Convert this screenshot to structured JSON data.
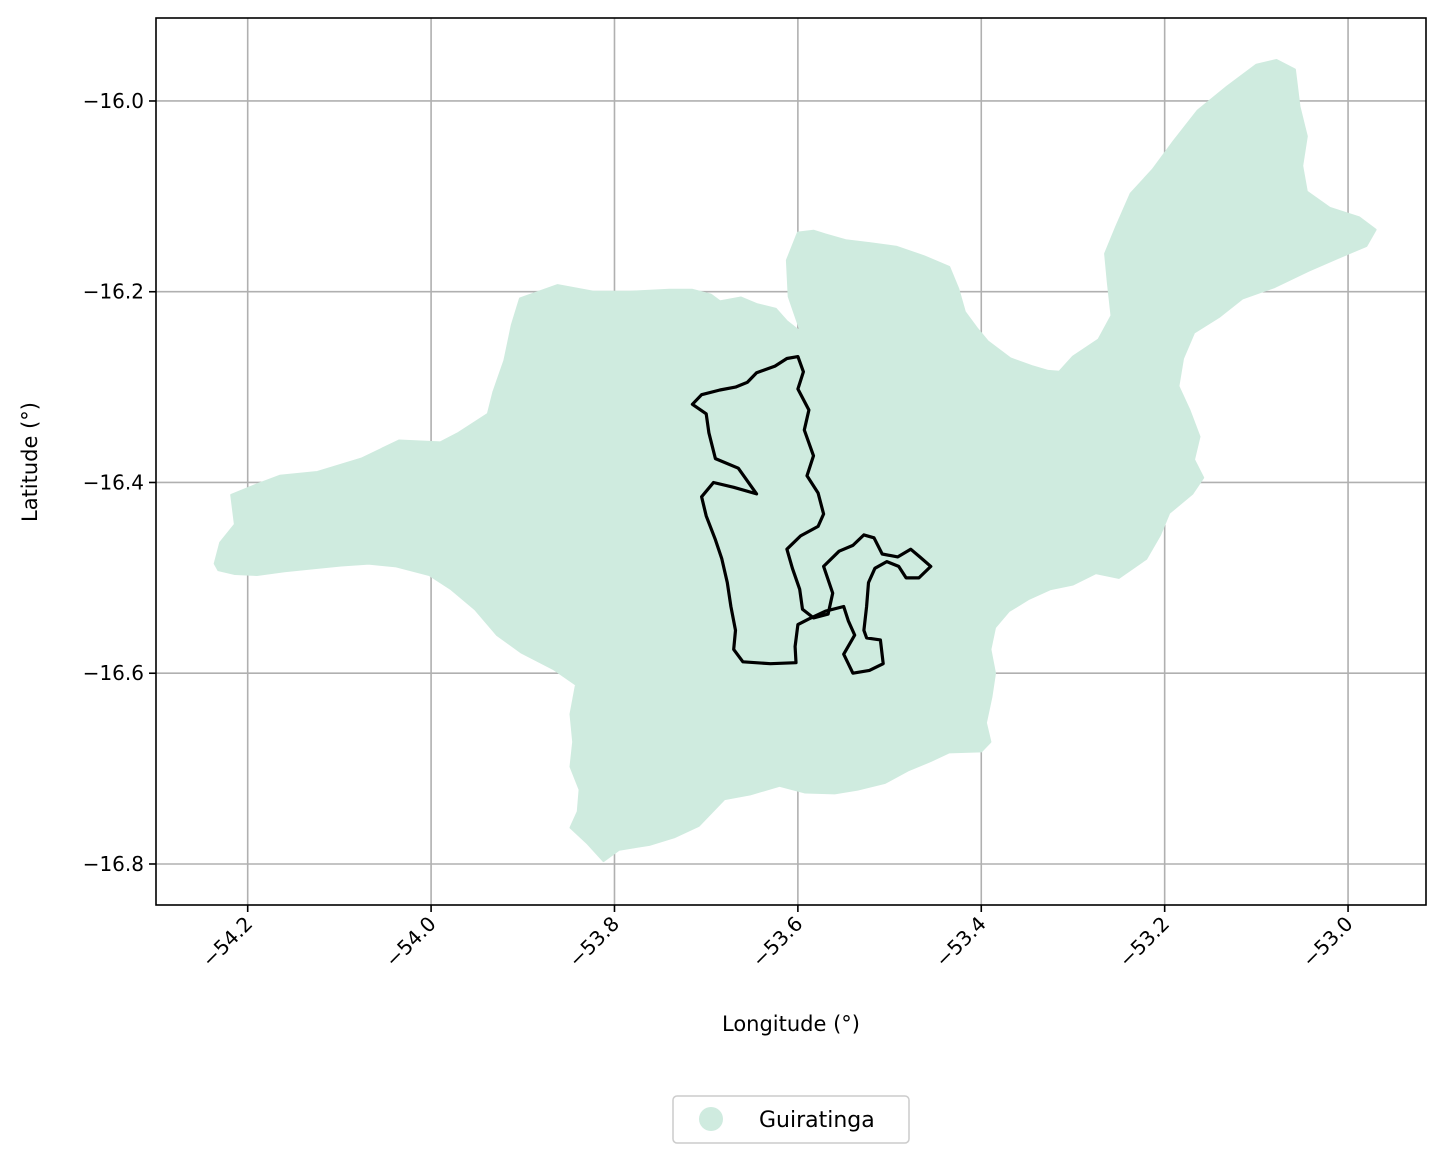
{
  "chart_data": {
    "type": "map",
    "title": "",
    "xlabel": "Longitude (°)",
    "ylabel": "Latitude (°)",
    "xlim": [
      -54.3,
      -52.915
    ],
    "ylim": [
      -16.843,
      -15.913
    ],
    "xticks": [
      -54.2,
      -54.0,
      -53.8,
      -53.6,
      -53.4,
      -53.2,
      -53.0
    ],
    "yticks": [
      -16.0,
      -16.2,
      -16.4,
      -16.6,
      -16.8
    ],
    "xtick_labels": [
      "−54.2",
      "−54.0",
      "−53.8",
      "−53.6",
      "−53.4",
      "−53.2",
      "−53.0"
    ],
    "ytick_labels": [
      "−16.0",
      "−16.2",
      "−16.4",
      "−16.6",
      "−16.8"
    ],
    "grid": true,
    "legend": {
      "placement": "bottom-center",
      "entries": [
        {
          "label": "Guiratinga",
          "color": "#cfebdf"
        }
      ]
    },
    "layers": [
      {
        "name": "Guiratinga",
        "kind": "filled-polygon",
        "color": "#cfebdf",
        "coordinates": [
          [
            -54.236,
            -16.485
          ],
          [
            -54.23,
            -16.463
          ],
          [
            -54.214,
            -16.444
          ],
          [
            -54.218,
            -16.413
          ],
          [
            -54.19,
            -16.402
          ],
          [
            -54.165,
            -16.393
          ],
          [
            -54.124,
            -16.389
          ],
          [
            -54.076,
            -16.375
          ],
          [
            -54.035,
            -16.356
          ],
          [
            -53.99,
            -16.358
          ],
          [
            -53.97,
            -16.348
          ],
          [
            -53.938,
            -16.328
          ],
          [
            -53.932,
            -16.305
          ],
          [
            -53.92,
            -16.272
          ],
          [
            -53.912,
            -16.235
          ],
          [
            -53.903,
            -16.207
          ],
          [
            -53.862,
            -16.193
          ],
          [
            -53.823,
            -16.2
          ],
          [
            -53.783,
            -16.2
          ],
          [
            -53.74,
            -16.198
          ],
          [
            -53.715,
            -16.198
          ],
          [
            -53.695,
            -16.203
          ],
          [
            -53.685,
            -16.21
          ],
          [
            -53.662,
            -16.206
          ],
          [
            -53.645,
            -16.213
          ],
          [
            -53.624,
            -16.218
          ],
          [
            -53.612,
            -16.231
          ],
          [
            -53.6,
            -16.24
          ],
          [
            -53.596,
            -16.244
          ],
          [
            -53.61,
            -16.205
          ],
          [
            -53.612,
            -16.167
          ],
          [
            -53.6,
            -16.138
          ],
          [
            -53.583,
            -16.136
          ],
          [
            -53.57,
            -16.14
          ],
          [
            -53.548,
            -16.146
          ],
          [
            -53.522,
            -16.149
          ],
          [
            -53.492,
            -16.153
          ],
          [
            -53.462,
            -16.163
          ],
          [
            -53.435,
            -16.174
          ],
          [
            -53.425,
            -16.197
          ],
          [
            -53.418,
            -16.221
          ],
          [
            -53.405,
            -16.238
          ],
          [
            -53.393,
            -16.252
          ],
          [
            -53.368,
            -16.27
          ],
          [
            -53.345,
            -16.278
          ],
          [
            -53.327,
            -16.283
          ],
          [
            -53.315,
            -16.284
          ],
          [
            -53.3,
            -16.268
          ],
          [
            -53.272,
            -16.25
          ],
          [
            -53.258,
            -16.225
          ],
          [
            -53.262,
            -16.19
          ],
          [
            -53.265,
            -16.16
          ],
          [
            -53.253,
            -16.132
          ],
          [
            -53.237,
            -16.097
          ],
          [
            -53.213,
            -16.072
          ],
          [
            -53.19,
            -16.042
          ],
          [
            -53.164,
            -16.01
          ],
          [
            -53.132,
            -15.985
          ],
          [
            -53.1,
            -15.962
          ],
          [
            -53.078,
            -15.957
          ],
          [
            -53.058,
            -15.967
          ],
          [
            -53.053,
            -16.006
          ],
          [
            -53.045,
            -16.037
          ],
          [
            -53.05,
            -16.068
          ],
          [
            -53.045,
            -16.095
          ],
          [
            -53.02,
            -16.112
          ],
          [
            -52.988,
            -16.122
          ],
          [
            -52.97,
            -16.135
          ],
          [
            -52.98,
            -16.152
          ],
          [
            -53.012,
            -16.165
          ],
          [
            -53.043,
            -16.178
          ],
          [
            -53.08,
            -16.195
          ],
          [
            -53.115,
            -16.207
          ],
          [
            -53.14,
            -16.226
          ],
          [
            -53.168,
            -16.243
          ],
          [
            -53.18,
            -16.27
          ],
          [
            -53.185,
            -16.299
          ],
          [
            -53.173,
            -16.324
          ],
          [
            -53.162,
            -16.352
          ],
          [
            -53.168,
            -16.376
          ],
          [
            -53.158,
            -16.395
          ],
          [
            -53.17,
            -16.412
          ],
          [
            -53.195,
            -16.432
          ],
          [
            -53.205,
            -16.455
          ],
          [
            -53.22,
            -16.48
          ],
          [
            -53.25,
            -16.5
          ],
          [
            -53.275,
            -16.495
          ],
          [
            -53.3,
            -16.507
          ],
          [
            -53.325,
            -16.512
          ],
          [
            -53.348,
            -16.522
          ],
          [
            -53.37,
            -16.535
          ],
          [
            -53.385,
            -16.552
          ],
          [
            -53.39,
            -16.575
          ],
          [
            -53.385,
            -16.6
          ],
          [
            -53.389,
            -16.625
          ],
          [
            -53.395,
            -16.652
          ],
          [
            -53.39,
            -16.672
          ],
          [
            -53.4,
            -16.682
          ],
          [
            -53.435,
            -16.683
          ],
          [
            -53.455,
            -16.692
          ],
          [
            -53.48,
            -16.702
          ],
          [
            -53.505,
            -16.715
          ],
          [
            -53.535,
            -16.722
          ],
          [
            -53.56,
            -16.726
          ],
          [
            -53.592,
            -16.725
          ],
          [
            -53.62,
            -16.718
          ],
          [
            -53.652,
            -16.727
          ],
          [
            -53.68,
            -16.732
          ],
          [
            -53.708,
            -16.76
          ],
          [
            -53.735,
            -16.772
          ],
          [
            -53.762,
            -16.78
          ],
          [
            -53.795,
            -16.785
          ],
          [
            -53.812,
            -16.797
          ],
          [
            -53.83,
            -16.778
          ],
          [
            -53.848,
            -16.762
          ],
          [
            -53.84,
            -16.745
          ],
          [
            -53.838,
            -16.722
          ],
          [
            -53.848,
            -16.698
          ],
          [
            -53.845,
            -16.672
          ],
          [
            -53.848,
            -16.643
          ],
          [
            -53.842,
            -16.612
          ],
          [
            -53.866,
            -16.596
          ],
          [
            -53.902,
            -16.578
          ],
          [
            -53.928,
            -16.56
          ],
          [
            -53.952,
            -16.533
          ],
          [
            -53.978,
            -16.512
          ],
          [
            -54.002,
            -16.497
          ],
          [
            -54.038,
            -16.488
          ],
          [
            -54.068,
            -16.485
          ],
          [
            -54.098,
            -16.487
          ],
          [
            -54.128,
            -16.49
          ],
          [
            -54.16,
            -16.493
          ],
          [
            -54.19,
            -16.497
          ],
          [
            -54.214,
            -16.496
          ],
          [
            -54.232,
            -16.492
          ]
        ]
      },
      {
        "name": "",
        "kind": "outline",
        "color": "#000000",
        "coordinates": [
          [
            -53.6,
            -16.268
          ],
          [
            -53.594,
            -16.284
          ],
          [
            -53.6,
            -16.302
          ],
          [
            -53.588,
            -16.324
          ],
          [
            -53.593,
            -16.345
          ],
          [
            -53.583,
            -16.372
          ],
          [
            -53.59,
            -16.393
          ],
          [
            -53.578,
            -16.411
          ],
          [
            -53.572,
            -16.433
          ],
          [
            -53.578,
            -16.446
          ],
          [
            -53.597,
            -16.456
          ],
          [
            -53.612,
            -16.47
          ],
          [
            -53.606,
            -16.49
          ],
          [
            -53.598,
            -16.512
          ],
          [
            -53.595,
            -16.533
          ],
          [
            -53.583,
            -16.542
          ],
          [
            -53.567,
            -16.538
          ],
          [
            -53.562,
            -16.516
          ],
          [
            -53.572,
            -16.488
          ],
          [
            -53.555,
            -16.472
          ],
          [
            -53.54,
            -16.466
          ],
          [
            -53.528,
            -16.455
          ],
          [
            -53.517,
            -16.458
          ],
          [
            -53.508,
            -16.475
          ],
          [
            -53.491,
            -16.478
          ],
          [
            -53.477,
            -16.47
          ],
          [
            -53.467,
            -16.478
          ],
          [
            -53.455,
            -16.488
          ],
          [
            -53.468,
            -16.5
          ],
          [
            -53.482,
            -16.5
          ],
          [
            -53.49,
            -16.488
          ],
          [
            -53.503,
            -16.483
          ],
          [
            -53.516,
            -16.49
          ],
          [
            -53.523,
            -16.505
          ],
          [
            -53.525,
            -16.53
          ],
          [
            -53.528,
            -16.555
          ],
          [
            -53.525,
            -16.563
          ],
          [
            -53.51,
            -16.565
          ],
          [
            -53.507,
            -16.59
          ],
          [
            -53.522,
            -16.597
          ],
          [
            -53.54,
            -16.6
          ],
          [
            -53.55,
            -16.58
          ],
          [
            -53.538,
            -16.56
          ],
          [
            -53.545,
            -16.545
          ],
          [
            -53.55,
            -16.53
          ],
          [
            -53.57,
            -16.535
          ],
          [
            -53.588,
            -16.543
          ],
          [
            -53.6,
            -16.549
          ],
          [
            -53.603,
            -16.572
          ],
          [
            -53.602,
            -16.589
          ],
          [
            -53.63,
            -16.59
          ],
          [
            -53.66,
            -16.588
          ],
          [
            -53.67,
            -16.575
          ],
          [
            -53.668,
            -16.555
          ],
          [
            -53.673,
            -16.53
          ],
          [
            -53.677,
            -16.505
          ],
          [
            -53.683,
            -16.48
          ],
          [
            -53.69,
            -16.46
          ],
          [
            -53.7,
            -16.435
          ],
          [
            -53.705,
            -16.415
          ],
          [
            -53.692,
            -16.4
          ],
          [
            -53.67,
            -16.405
          ],
          [
            -53.645,
            -16.412
          ],
          [
            -53.665,
            -16.385
          ],
          [
            -53.69,
            -16.375
          ],
          [
            -53.697,
            -16.348
          ],
          [
            -53.7,
            -16.328
          ],
          [
            -53.715,
            -16.318
          ],
          [
            -53.705,
            -16.308
          ],
          [
            -53.685,
            -16.303
          ],
          [
            -53.668,
            -16.3
          ],
          [
            -53.655,
            -16.295
          ],
          [
            -53.645,
            -16.285
          ],
          [
            -53.625,
            -16.278
          ],
          [
            -53.612,
            -16.27
          ]
        ]
      }
    ]
  }
}
